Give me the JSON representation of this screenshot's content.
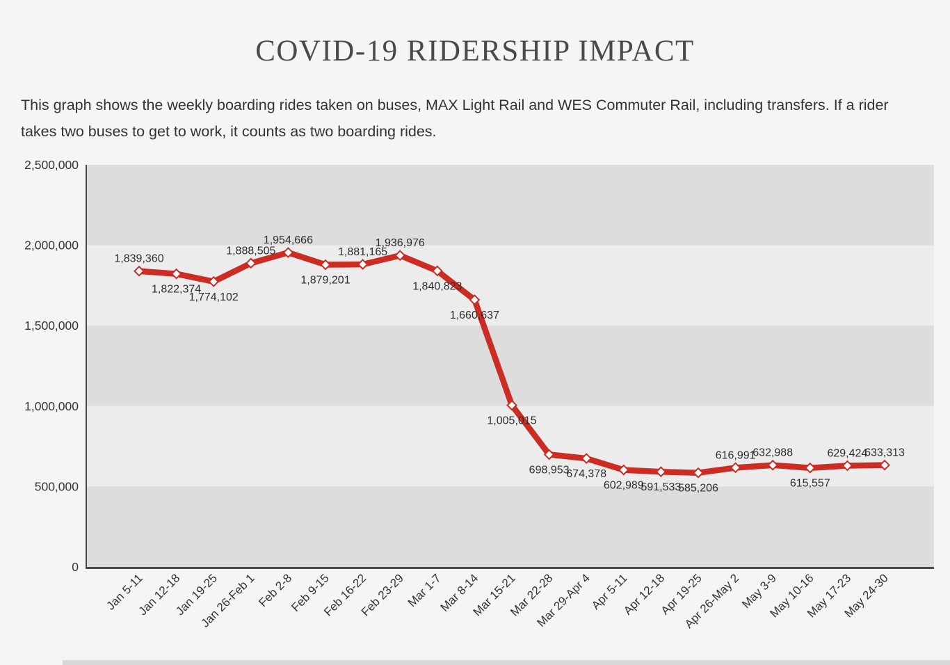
{
  "page": {
    "title": "COVID-19 RIDERSHIP IMPACT",
    "description": "This graph shows the weekly boarding rides taken on buses, MAX Light Rail and WES Commuter Rail, including transfers. If a rider takes two buses to get to work, it counts as two boarding rides."
  },
  "colors": {
    "background": "#f5f5f4",
    "line": "#cb2c23",
    "marker_fill": "#ffffff",
    "marker_stroke": "#cb2c23",
    "band_dark": "#dddddd",
    "band_light": "#ececec",
    "axis": "#4a4a4a",
    "tick_text": "#333333",
    "data_label_text": "#2d2d2d"
  },
  "chart_data": {
    "type": "line",
    "title": "",
    "xlabel": "",
    "ylabel": "",
    "legend": "none",
    "grid": "alternating horizontal bands every 500,000",
    "ylim": [
      0,
      2500000
    ],
    "y_tick_interval": 500000,
    "y_tick_labels": [
      "0",
      "500,000",
      "1,000,000",
      "1,500,000",
      "2,000,000",
      "2,500,000"
    ],
    "categories": [
      "Jan 5-11",
      "Jan 12-18",
      "Jan 19-25",
      "Jan 26-Feb 1",
      "Feb 2-8",
      "Feb 9-15",
      "Feb 16-22",
      "Feb 23-29",
      "Mar 1-7",
      "Mar 8-14",
      "Mar 15-21",
      "Mar 22-28",
      "Mar 29-Apr 4",
      "Apr 5-11",
      "Apr 12-18",
      "Apr 19-25",
      "Apr 26-May 2",
      "May 3-9",
      "May 10-16",
      "May 17-23",
      "May 24-30"
    ],
    "series": [
      {
        "name": "Weekly boarding rides",
        "values": [
          1839360,
          1822374,
          1774102,
          1888505,
          1954666,
          1879201,
          1881165,
          1936976,
          1840823,
          1660637,
          1005015,
          698953,
          674378,
          602989,
          591533,
          585206,
          616991,
          632988,
          615557,
          629424,
          633313
        ],
        "value_labels": [
          "1,839,360",
          "1,822,374",
          "1,774,102",
          "1,888,505",
          "1,954,666",
          "1,879,201",
          "1,881,165",
          "1,936,976",
          "1,840,823",
          "1,660,637",
          "1,005,015",
          "698,953",
          "674,378",
          "602,989",
          "591,533",
          "585,206",
          "616,991",
          "632,988",
          "615,557",
          "629,424",
          "633,313"
        ],
        "label_positions": [
          "above",
          "below",
          "below",
          "above",
          "above",
          "below",
          "above",
          "above",
          "below",
          "below",
          "below",
          "below",
          "below",
          "below",
          "below",
          "below",
          "above",
          "above",
          "below",
          "above",
          "above"
        ]
      }
    ]
  }
}
